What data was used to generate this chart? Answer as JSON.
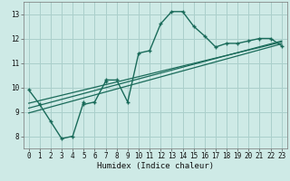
{
  "xlabel": "Humidex (Indice chaleur)",
  "bg_color": "#ceeae6",
  "grid_color": "#aacfcb",
  "line_color": "#1a6b5a",
  "xlim": [
    -0.5,
    23.5
  ],
  "ylim": [
    7.5,
    13.5
  ],
  "xticks": [
    0,
    1,
    2,
    3,
    4,
    5,
    6,
    7,
    8,
    9,
    10,
    11,
    12,
    13,
    14,
    15,
    16,
    17,
    18,
    19,
    20,
    21,
    22,
    23
  ],
  "yticks": [
    8,
    9,
    10,
    11,
    12,
    13
  ],
  "curve_x": [
    0,
    1,
    2,
    3,
    4,
    5,
    5,
    6,
    7,
    7,
    8,
    9,
    10,
    11,
    12,
    13,
    14,
    15,
    16,
    17,
    18,
    19,
    20,
    21,
    22,
    23
  ],
  "curve_y": [
    9.9,
    9.3,
    8.6,
    7.9,
    8.0,
    9.4,
    9.3,
    9.4,
    10.25,
    10.3,
    10.3,
    9.4,
    11.4,
    11.5,
    12.6,
    13.1,
    13.1,
    12.5,
    12.1,
    11.65,
    11.8,
    11.8,
    11.9,
    12.0,
    12.0,
    11.7
  ],
  "line1_x": [
    0,
    23
  ],
  "line1_y": [
    9.35,
    11.85
  ],
  "line2_x": [
    0,
    23
  ],
  "line2_y": [
    9.15,
    11.9
  ],
  "line3_x": [
    0,
    23
  ],
  "line3_y": [
    8.95,
    11.78
  ]
}
